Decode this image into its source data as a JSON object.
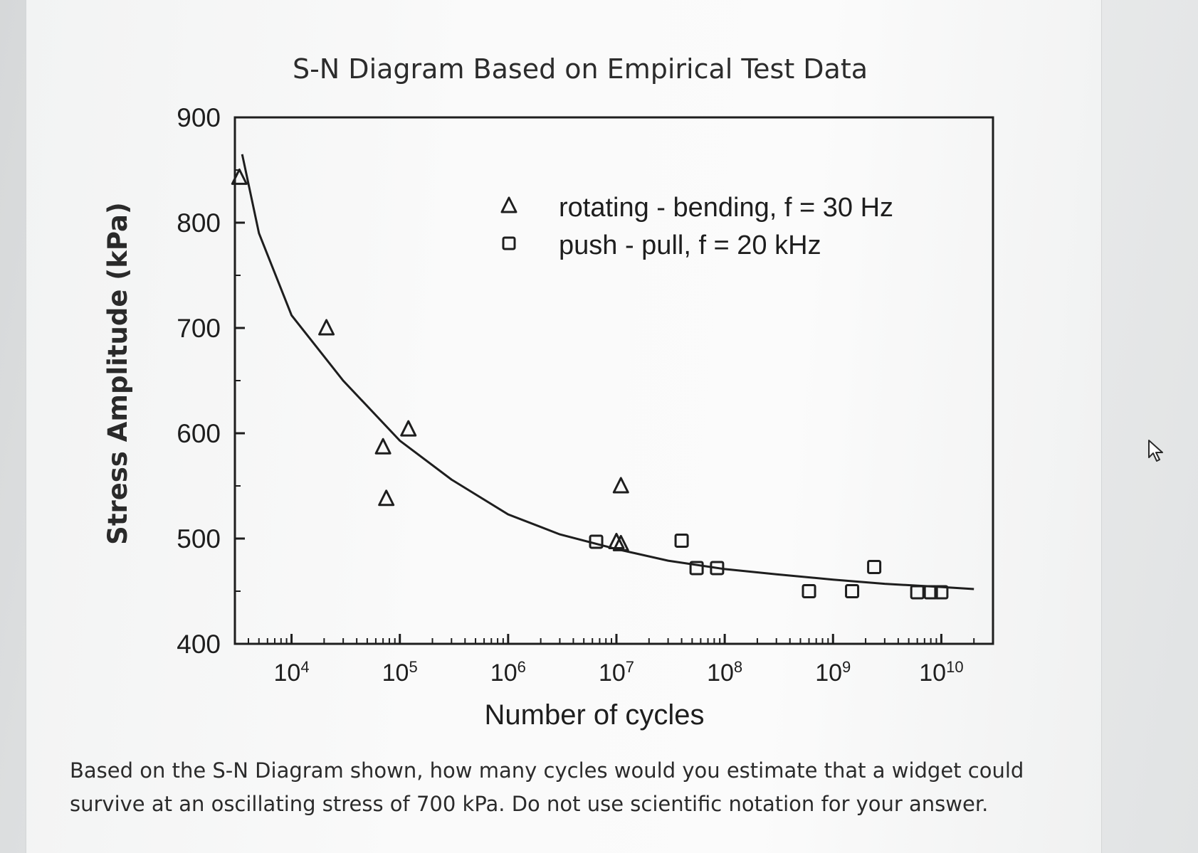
{
  "chart_data": {
    "type": "scatter",
    "title": "S-N Diagram Based on Empirical Test Data",
    "xlabel": "Number of cycles",
    "ylabel": "Stress Amplitude (kPa)",
    "xscale": "log",
    "xlim": [
      3000,
      30000000000
    ],
    "ylim": [
      400,
      900
    ],
    "y_ticks": [
      900,
      800,
      700,
      600,
      500,
      400
    ],
    "x_ticks": [
      {
        "value": 10000,
        "base": "10",
        "exp": "4"
      },
      {
        "value": 100000,
        "base": "10",
        "exp": "5"
      },
      {
        "value": 1000000,
        "base": "10",
        "exp": "6"
      },
      {
        "value": 10000000,
        "base": "10",
        "exp": "7"
      },
      {
        "value": 100000000,
        "base": "10",
        "exp": "8"
      },
      {
        "value": 1000000000,
        "base": "10",
        "exp": "9"
      },
      {
        "value": 10000000000,
        "base": "10",
        "exp": "10"
      }
    ],
    "legend_position": "top-right",
    "series": [
      {
        "name": "rotating - bending, f = 30 Hz",
        "marker": "triangle",
        "points": [
          [
            3300,
            843
          ],
          [
            21000,
            700
          ],
          [
            70000,
            587
          ],
          [
            120000,
            604
          ],
          [
            75000,
            538
          ],
          [
            11000000,
            550
          ],
          [
            10000000,
            497
          ],
          [
            11000000,
            495
          ]
        ]
      },
      {
        "name": "push - pull, f = 20 kHz",
        "marker": "square",
        "points": [
          [
            6500000,
            497
          ],
          [
            40000000,
            498
          ],
          [
            55000000,
            472
          ],
          [
            85000000,
            472
          ],
          [
            600000000,
            450
          ],
          [
            1500000000,
            450
          ],
          [
            2400000000,
            473
          ],
          [
            6000000000,
            449
          ],
          [
            8000000000,
            449
          ],
          [
            10000000000,
            449
          ]
        ]
      },
      {
        "name": "",
        "type": "line",
        "points": [
          [
            3500,
            865
          ],
          [
            5000,
            790
          ],
          [
            10000,
            712
          ],
          [
            30000,
            650
          ],
          [
            100000,
            593
          ],
          [
            300000,
            556
          ],
          [
            1000000,
            523
          ],
          [
            3000000,
            504
          ],
          [
            10000000,
            490
          ],
          [
            30000000,
            479
          ],
          [
            100000000,
            471
          ],
          [
            300000000,
            466
          ],
          [
            1000000000,
            461
          ],
          [
            3000000000,
            457
          ],
          [
            10000000000,
            454
          ],
          [
            20000000000,
            452
          ]
        ]
      }
    ]
  },
  "question": "Based on the S-N Diagram shown, how many cycles would you estimate that a widget could survive at an oscillating stress of 700 kPa.  Do not use scientific notation for your answer.",
  "colors": {
    "ink": "#1e1e1e",
    "panel": "#fafafa",
    "background": "#c9cccd"
  },
  "icons": {
    "cursor": "mouse-pointer-icon"
  }
}
